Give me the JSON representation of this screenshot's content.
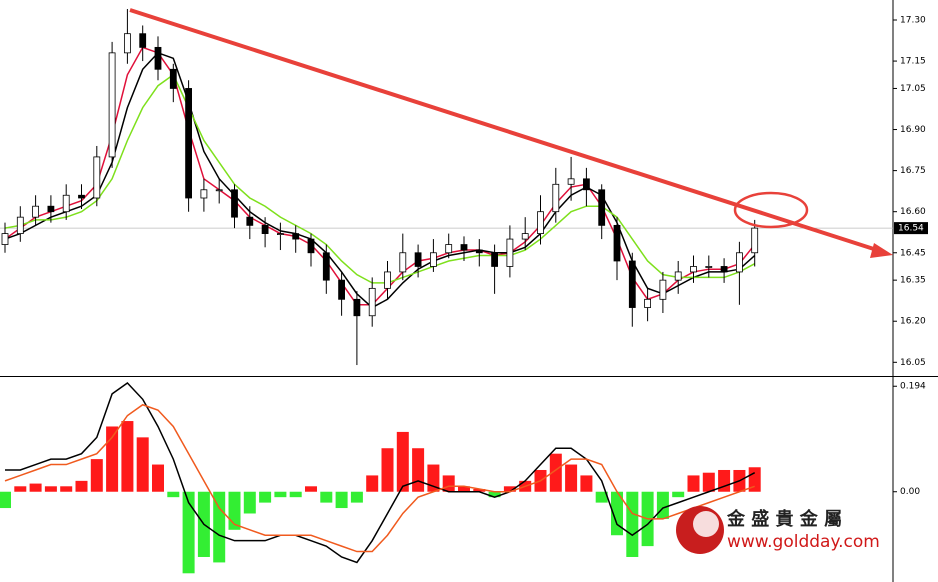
{
  "chart_data": [
    {
      "type": "candlestick",
      "open": [
        16.48,
        16.52,
        16.58,
        16.62,
        16.6,
        16.66,
        16.65,
        16.8,
        17.18,
        17.25,
        17.2,
        17.12,
        17.05,
        16.65,
        16.68,
        16.68,
        16.58,
        16.55,
        16.52,
        16.52,
        16.5,
        16.45,
        16.35,
        16.28,
        16.22,
        16.32,
        16.38,
        16.45,
        16.4,
        16.45,
        16.48,
        16.46,
        16.45,
        16.4,
        16.5,
        16.52,
        16.6,
        16.7,
        16.72,
        16.68,
        16.55,
        16.42,
        16.25,
        16.28,
        16.35,
        16.38,
        16.4,
        16.4,
        16.38,
        16.45
      ],
      "high": [
        16.56,
        16.62,
        16.66,
        16.66,
        16.7,
        16.7,
        16.84,
        17.22,
        17.34,
        17.28,
        17.24,
        17.14,
        17.08,
        16.72,
        16.72,
        16.7,
        16.62,
        16.58,
        16.56,
        16.55,
        16.52,
        16.48,
        16.38,
        16.31,
        16.36,
        16.42,
        16.52,
        16.48,
        16.5,
        16.52,
        16.51,
        16.5,
        16.48,
        16.55,
        16.58,
        16.66,
        16.76,
        16.8,
        16.76,
        16.7,
        16.58,
        16.45,
        16.32,
        16.38,
        16.42,
        16.44,
        16.44,
        16.43,
        16.49,
        16.57
      ],
      "low": [
        16.45,
        16.49,
        16.55,
        16.56,
        16.57,
        16.61,
        16.62,
        16.76,
        17.14,
        17.15,
        17.08,
        17.0,
        16.6,
        16.6,
        16.63,
        16.54,
        16.5,
        16.47,
        16.46,
        16.45,
        16.4,
        16.3,
        16.22,
        16.04,
        16.18,
        16.28,
        16.35,
        16.36,
        16.38,
        16.43,
        16.42,
        16.4,
        16.3,
        16.36,
        16.46,
        16.48,
        16.56,
        16.64,
        16.62,
        16.5,
        16.35,
        16.18,
        16.2,
        16.23,
        16.3,
        16.34,
        16.36,
        16.34,
        16.26,
        16.4
      ],
      "close": [
        16.52,
        16.58,
        16.62,
        16.6,
        16.66,
        16.65,
        16.8,
        17.18,
        17.25,
        17.2,
        17.12,
        17.05,
        16.65,
        16.68,
        16.68,
        16.58,
        16.55,
        16.52,
        16.52,
        16.5,
        16.45,
        16.35,
        16.28,
        16.22,
        16.32,
        16.38,
        16.45,
        16.4,
        16.45,
        16.48,
        16.46,
        16.45,
        16.4,
        16.5,
        16.52,
        16.6,
        16.7,
        16.72,
        16.68,
        16.55,
        16.42,
        16.25,
        16.28,
        16.35,
        16.38,
        16.4,
        16.4,
        16.38,
        16.45,
        16.54
      ],
      "series": [
        {
          "color": "#e0103a",
          "values": [
            16.5,
            16.54,
            16.58,
            16.6,
            16.62,
            16.64,
            16.7,
            16.88,
            17.1,
            17.2,
            17.18,
            17.1,
            16.9,
            16.72,
            16.68,
            16.64,
            16.58,
            16.55,
            16.52,
            16.51,
            16.48,
            16.42,
            16.34,
            16.26,
            16.26,
            16.32,
            16.38,
            16.42,
            16.43,
            16.45,
            16.46,
            16.46,
            16.44,
            16.45,
            16.49,
            16.55,
            16.63,
            16.69,
            16.7,
            16.62,
            16.5,
            16.36,
            16.28,
            16.3,
            16.35,
            16.38,
            16.39,
            16.39,
            16.41,
            16.48
          ]
        },
        {
          "color": "#000000",
          "values": [
            16.5,
            16.52,
            16.55,
            16.58,
            16.6,
            16.62,
            16.66,
            16.78,
            16.98,
            17.12,
            17.18,
            17.16,
            17.0,
            16.82,
            16.72,
            16.66,
            16.6,
            16.56,
            16.53,
            16.52,
            16.5,
            16.45,
            16.38,
            16.3,
            16.25,
            16.28,
            16.34,
            16.39,
            16.42,
            16.44,
            16.45,
            16.46,
            16.45,
            16.45,
            16.47,
            16.52,
            16.6,
            16.66,
            16.69,
            16.66,
            16.56,
            16.42,
            16.32,
            16.3,
            16.33,
            16.36,
            16.38,
            16.38,
            16.39,
            16.44
          ]
        },
        {
          "color": "#7ee01c",
          "values": [
            16.54,
            16.55,
            16.57,
            16.57,
            16.58,
            16.6,
            16.64,
            16.72,
            16.86,
            16.98,
            17.06,
            17.1,
            16.98,
            16.86,
            16.78,
            16.7,
            16.65,
            16.62,
            16.58,
            16.55,
            16.52,
            16.48,
            16.42,
            16.37,
            16.34,
            16.34,
            16.36,
            16.38,
            16.4,
            16.42,
            16.43,
            16.44,
            16.44,
            16.44,
            16.46,
            16.5,
            16.55,
            16.6,
            16.62,
            16.62,
            16.58,
            16.5,
            16.42,
            16.37,
            16.36,
            16.36,
            16.36,
            16.36,
            16.38,
            16.41
          ]
        }
      ],
      "last_price": 16.54,
      "ylim": [
        16.0,
        17.373
      ],
      "yticks": [
        {
          "value": 17.3,
          "label": "17.30"
        },
        {
          "value": 17.15,
          "label": "17.15"
        },
        {
          "value": 17.05,
          "label": "17.05"
        },
        {
          "value": 16.9,
          "label": "16.90"
        },
        {
          "value": 16.75,
          "label": "16.75"
        },
        {
          "value": 16.6,
          "label": "16.60"
        },
        {
          "value": 16.45,
          "label": "16.45"
        },
        {
          "value": 16.35,
          "label": "16.35"
        },
        {
          "value": 16.2,
          "label": "16.20"
        },
        {
          "value": 16.05,
          "label": "16.05"
        }
      ]
    },
    {
      "type": "bar",
      "values": [
        -0.03,
        0.01,
        0.015,
        0.01,
        0.01,
        0.02,
        0.06,
        0.12,
        0.13,
        0.1,
        0.05,
        -0.01,
        -0.15,
        -0.12,
        -0.13,
        -0.07,
        -0.04,
        -0.02,
        -0.01,
        -0.01,
        0.01,
        -0.02,
        -0.03,
        -0.02,
        0.03,
        0.08,
        0.11,
        0.08,
        0.05,
        0.03,
        0.01,
        0.005,
        -0.01,
        0.01,
        0.02,
        0.04,
        0.07,
        0.05,
        0.03,
        -0.02,
        -0.08,
        -0.12,
        -0.1,
        -0.05,
        -0.01,
        0.03,
        0.035,
        0.04,
        0.04,
        0.045
      ],
      "up_color": "#ff1a1a",
      "down_color": "#33ee33",
      "series": [
        {
          "color": "#000000",
          "values": [
            0.04,
            0.04,
            0.05,
            0.06,
            0.06,
            0.07,
            0.1,
            0.18,
            0.2,
            0.17,
            0.12,
            0.06,
            -0.02,
            -0.06,
            -0.08,
            -0.09,
            -0.09,
            -0.09,
            -0.08,
            -0.08,
            -0.09,
            -0.1,
            -0.12,
            -0.13,
            -0.09,
            -0.04,
            0.01,
            0.02,
            0.01,
            0.0,
            0.0,
            0.0,
            -0.01,
            0.0,
            0.02,
            0.05,
            0.08,
            0.08,
            0.06,
            0.02,
            -0.06,
            -0.08,
            -0.06,
            -0.03,
            -0.02,
            -0.01,
            0.0,
            0.01,
            0.02,
            0.035
          ]
        },
        {
          "color": "#f05a1e",
          "values": [
            0.02,
            0.03,
            0.04,
            0.05,
            0.05,
            0.06,
            0.07,
            0.1,
            0.14,
            0.16,
            0.15,
            0.12,
            0.07,
            0.02,
            -0.03,
            -0.06,
            -0.07,
            -0.08,
            -0.08,
            -0.08,
            -0.08,
            -0.09,
            -0.1,
            -0.11,
            -0.11,
            -0.08,
            -0.04,
            -0.01,
            0.0,
            0.01,
            0.01,
            0.005,
            0.0,
            0.0,
            0.01,
            0.02,
            0.04,
            0.06,
            0.06,
            0.05,
            0.0,
            -0.04,
            -0.05,
            -0.05,
            -0.04,
            -0.03,
            -0.02,
            -0.01,
            0.0,
            0.01
          ]
        }
      ],
      "ylim": [
        -0.166,
        0.211
      ],
      "yticks": [
        0.194,
        {
          "value": 0,
          "label": "0.00"
        }
      ]
    }
  ],
  "watermark": {
    "name": "金 盛 貴 金 屬",
    "url": "www.goldday.com"
  }
}
